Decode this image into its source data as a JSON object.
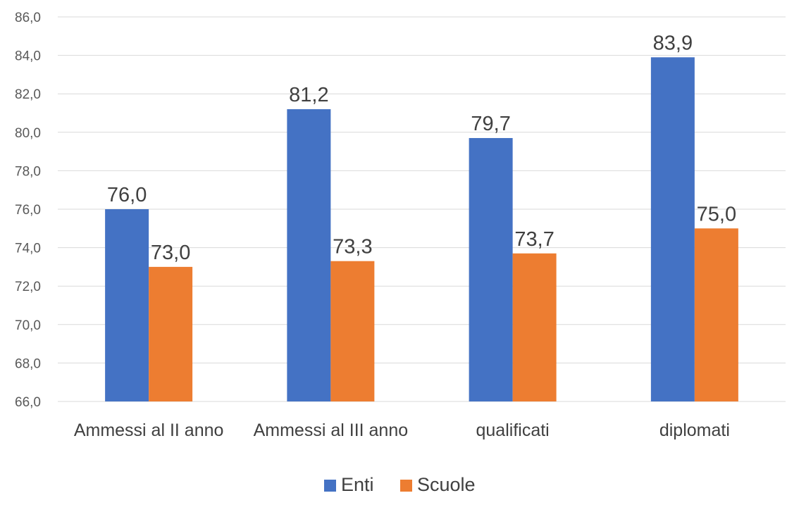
{
  "chart_data": {
    "type": "bar",
    "categories": [
      "Ammessi al II anno",
      "Ammessi al III anno",
      "qualificati",
      "diplomati"
    ],
    "series": [
      {
        "name": "Enti",
        "values": [
          76.0,
          81.2,
          79.7,
          83.9
        ],
        "labels": [
          "76,0",
          "81,2",
          "79,7",
          "83,9"
        ],
        "color": "#4472c4"
      },
      {
        "name": "Scuole",
        "values": [
          73.0,
          73.3,
          73.7,
          75.0
        ],
        "labels": [
          "73,0",
          "73,3",
          "73,7",
          "75,0"
        ],
        "color": "#ed7d31"
      }
    ],
    "ylim": [
      66,
      86
    ],
    "yticks": [
      66,
      68,
      70,
      72,
      74,
      76,
      78,
      80,
      82,
      84,
      86
    ],
    "ytick_labels": [
      "66,0",
      "68,0",
      "70,0",
      "72,0",
      "74,0",
      "76,0",
      "78,0",
      "80,0",
      "82,0",
      "84,0",
      "86,0"
    ],
    "grid": true,
    "legend_position": "bottom",
    "title": "",
    "xlabel": "",
    "ylabel": ""
  }
}
